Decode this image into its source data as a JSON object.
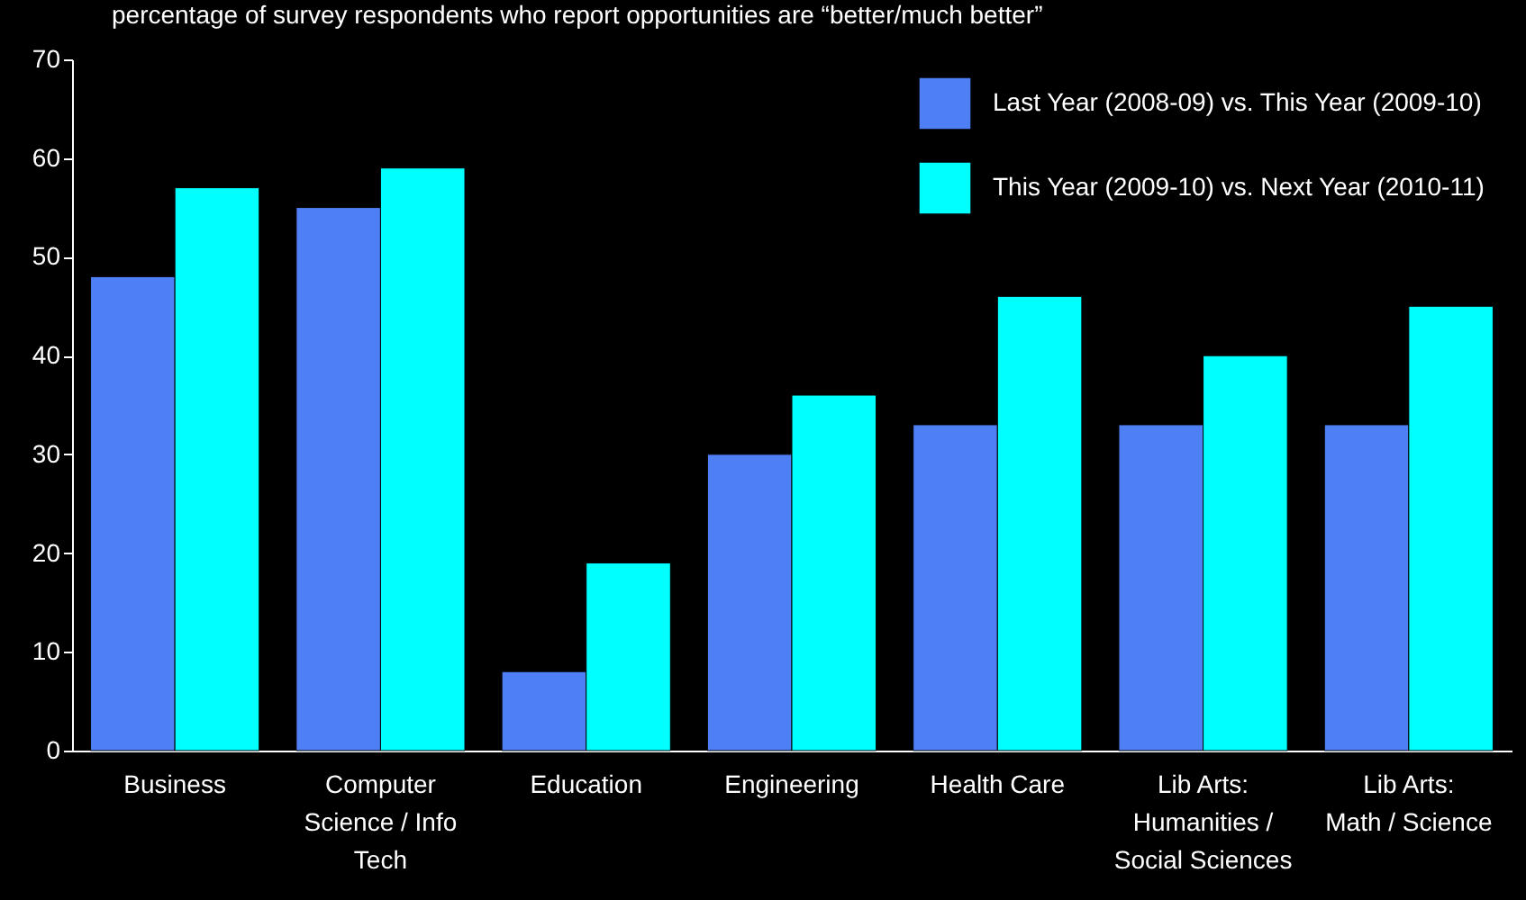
{
  "chart_data": {
    "type": "bar",
    "title": "percentage of survey respondents who report opportunities are “better/much better”",
    "categories": [
      "Business",
      "Computer Science / Info Tech",
      "Education",
      "Engineering",
      "Health Care",
      "Lib Arts: Humanities / Social Sciences",
      "Lib Arts: Math / Science"
    ],
    "series": [
      {
        "name": "Last Year  (2008-09) vs. This Year (2009-10)",
        "color": "#4f7ff5",
        "values": [
          48,
          55,
          8,
          30,
          33,
          33,
          33
        ]
      },
      {
        "name": "This Year  (2009-10) vs. Next Year (2010-11)",
        "color": "#00ffff",
        "values": [
          57,
          59,
          19,
          36,
          46,
          40,
          45
        ]
      }
    ],
    "ylim": [
      0,
      70
    ],
    "yticks": [
      0,
      10,
      20,
      30,
      40,
      50,
      60,
      70
    ],
    "grid": false,
    "legend": "top right"
  }
}
